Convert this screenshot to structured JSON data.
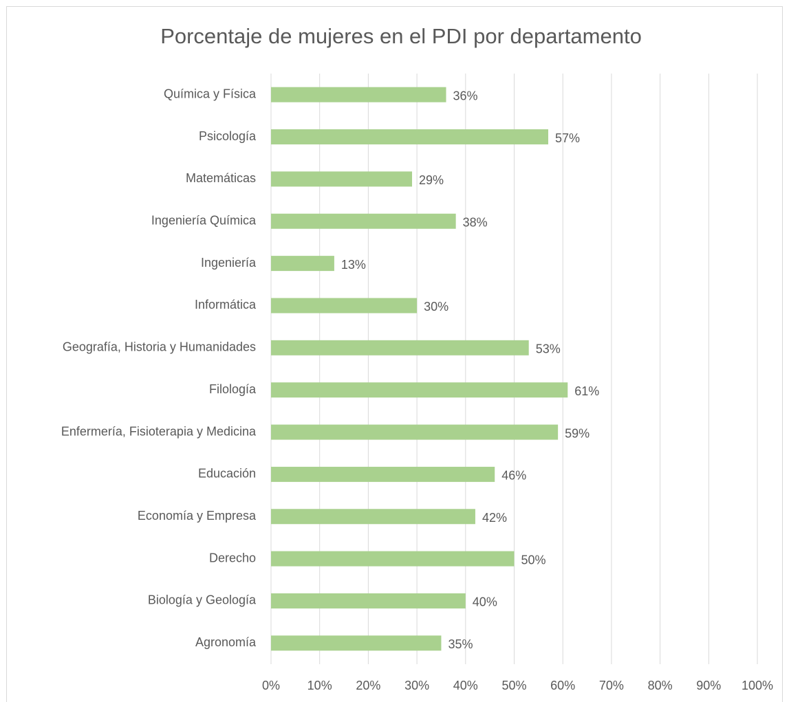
{
  "chart_data": {
    "type": "bar",
    "orientation": "horizontal",
    "title": "Porcentaje de mujeres en el PDI por departamento",
    "categories": [
      "Química y Física",
      "Psicología",
      "Matemáticas",
      "Ingeniería Química",
      "Ingeniería",
      "Informática",
      "Geografía, Historia y Humanidades",
      "Filología",
      "Enfermería, Fisioterapia y Medicina",
      "Educación",
      "Economía y Empresa",
      "Derecho",
      "Biología y Geología",
      "Agronomía"
    ],
    "values": [
      36,
      57,
      29,
      38,
      13,
      30,
      53,
      61,
      59,
      46,
      42,
      50,
      40,
      35
    ],
    "value_labels": [
      "36%",
      "57%",
      "29%",
      "38%",
      "13%",
      "30%",
      "53%",
      "61%",
      "59%",
      "46%",
      "42%",
      "50%",
      "40%",
      "35%"
    ],
    "color": "#a9d18e",
    "xlim": [
      0,
      100
    ],
    "xticks": [
      {
        "value": 0,
        "label": "0%"
      },
      {
        "value": 10,
        "label": "10%"
      },
      {
        "value": 20,
        "label": "20%"
      },
      {
        "value": 30,
        "label": "30%"
      },
      {
        "value": 40,
        "label": "40%"
      },
      {
        "value": 50,
        "label": "50%"
      },
      {
        "value": 60,
        "label": "60%"
      },
      {
        "value": 70,
        "label": "70%"
      },
      {
        "value": 80,
        "label": "80%"
      },
      {
        "value": 90,
        "label": "90%"
      },
      {
        "value": 100,
        "label": "100%"
      }
    ],
    "grid": true
  }
}
